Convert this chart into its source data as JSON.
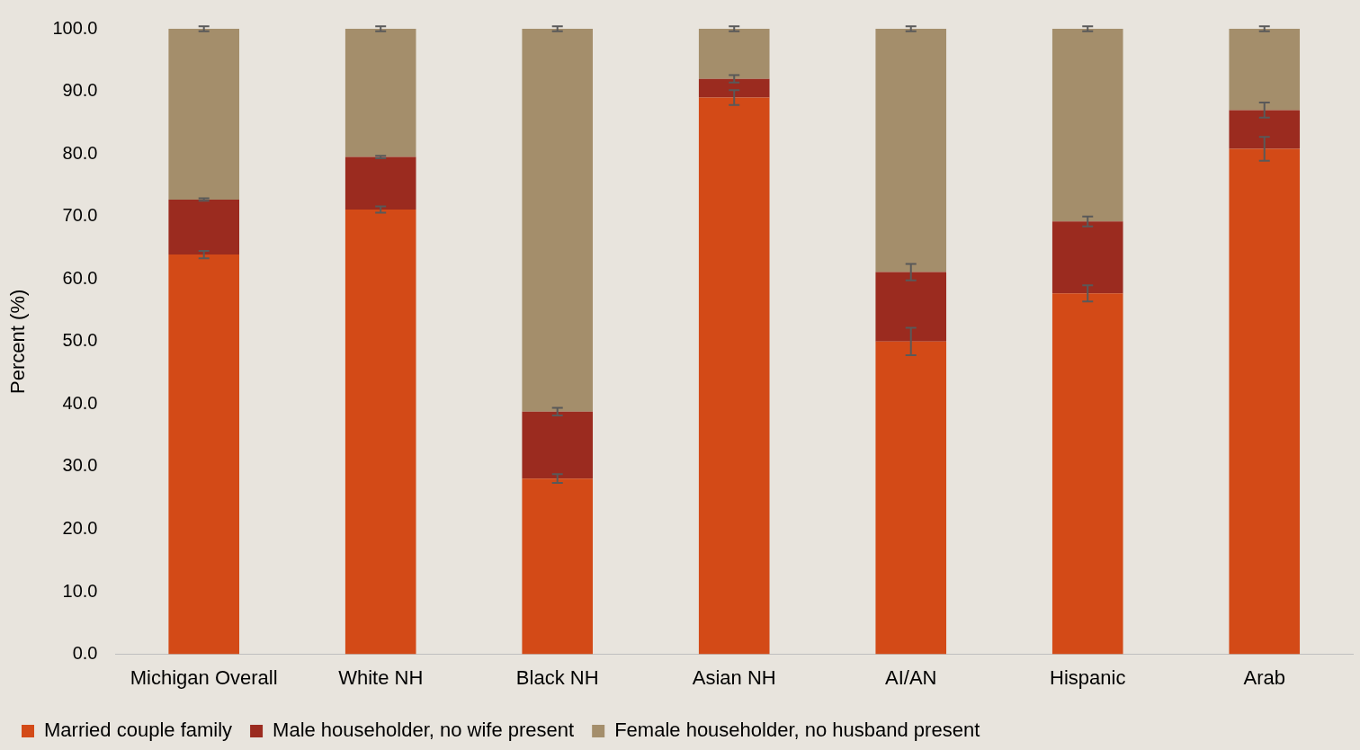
{
  "chart_data": {
    "type": "bar",
    "stacked": true,
    "ylabel": "Percent (%)",
    "categories": [
      "Michigan Overall",
      "White NH",
      "Black NH",
      "Asian NH",
      "AI/AN",
      "Hispanic",
      "Arab"
    ],
    "series": [
      {
        "name": "Married couple family",
        "color": "#d34a17",
        "values": [
          63.9,
          71.1,
          28.1,
          89.0,
          50.0,
          57.7,
          80.8
        ],
        "errors": [
          0.6,
          0.5,
          0.7,
          1.2,
          2.2,
          1.3,
          1.9
        ]
      },
      {
        "name": "Male householder, no wife present",
        "color": "#9b2b1f",
        "values": [
          8.8,
          8.4,
          10.7,
          3.0,
          11.1,
          11.5,
          6.2
        ],
        "errors": [
          0.2,
          0.2,
          0.6,
          0.6,
          1.3,
          0.8,
          1.2
        ]
      },
      {
        "name": "Female householder, no husband present",
        "color": "#a48e6b",
        "values": [
          27.3,
          20.5,
          61.2,
          8.0,
          38.9,
          30.8,
          13.0
        ],
        "errors": [
          0.4,
          0.4,
          0.4,
          0.4,
          0.4,
          0.4,
          0.4
        ]
      }
    ],
    "ylim": [
      0,
      100
    ],
    "yticks": [
      {
        "value": 0,
        "label": "0.0"
      },
      {
        "value": 10,
        "label": "10.0"
      },
      {
        "value": 20,
        "label": "20.0"
      },
      {
        "value": 30,
        "label": "30.0"
      },
      {
        "value": 40,
        "label": "40.0"
      },
      {
        "value": 50,
        "label": "50.0"
      },
      {
        "value": 60,
        "label": "60.0"
      },
      {
        "value": 70,
        "label": "70.0"
      },
      {
        "value": 80,
        "label": "80.0"
      },
      {
        "value": 90,
        "label": "90.0"
      },
      {
        "value": 100,
        "label": "100.0"
      }
    ],
    "grid": false,
    "legend": "bottom"
  }
}
